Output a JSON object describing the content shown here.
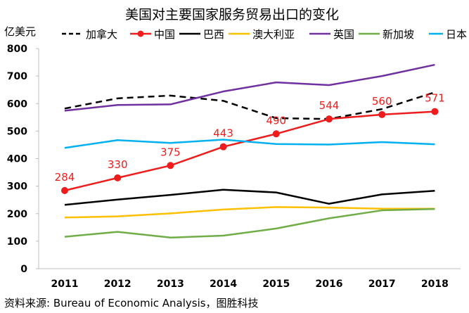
{
  "chart_data": {
    "type": "line",
    "title": "美国对主要国家服务贸易出口的变化",
    "ylabel": "亿美元",
    "xlabel": "",
    "ylim": [
      0,
      800
    ],
    "yticks": [
      0,
      100,
      200,
      300,
      400,
      500,
      600,
      700,
      800
    ],
    "categories": [
      "2011",
      "2012",
      "2013",
      "2014",
      "2015",
      "2016",
      "2017",
      "2018"
    ],
    "series": [
      {
        "name": "加拿大",
        "color": "#000000",
        "style": "dashed",
        "values": [
          582,
          619,
          629,
          610,
          547,
          544,
          580,
          641
        ]
      },
      {
        "name": "中国",
        "color": "#ee1c1c",
        "style": "marker",
        "values": [
          284,
          330,
          375,
          443,
          490,
          544,
          560,
          571
        ],
        "labels": [
          "284",
          "330",
          "375",
          "443",
          "490",
          "544",
          "560",
          "571"
        ]
      },
      {
        "name": "巴西",
        "color": "#000000",
        "style": "solid",
        "values": [
          232,
          251,
          268,
          287,
          277,
          236,
          270,
          283
        ]
      },
      {
        "name": "澳大利亚",
        "color": "#ffc000",
        "style": "solid",
        "values": [
          186,
          190,
          201,
          215,
          224,
          222,
          218,
          218
        ]
      },
      {
        "name": "英国",
        "color": "#7030a0",
        "style": "solid",
        "values": [
          574,
          595,
          597,
          644,
          677,
          667,
          700,
          741
        ]
      },
      {
        "name": "新加坡",
        "color": "#70ad47",
        "style": "solid",
        "values": [
          116,
          134,
          113,
          120,
          146,
          183,
          212,
          217
        ]
      },
      {
        "name": "日本",
        "color": "#00b0f0",
        "style": "solid",
        "values": [
          439,
          467,
          457,
          469,
          453,
          451,
          460,
          452
        ]
      }
    ]
  },
  "source_text": "资料来源: Bureau of Economic Analysis，图胜科技"
}
